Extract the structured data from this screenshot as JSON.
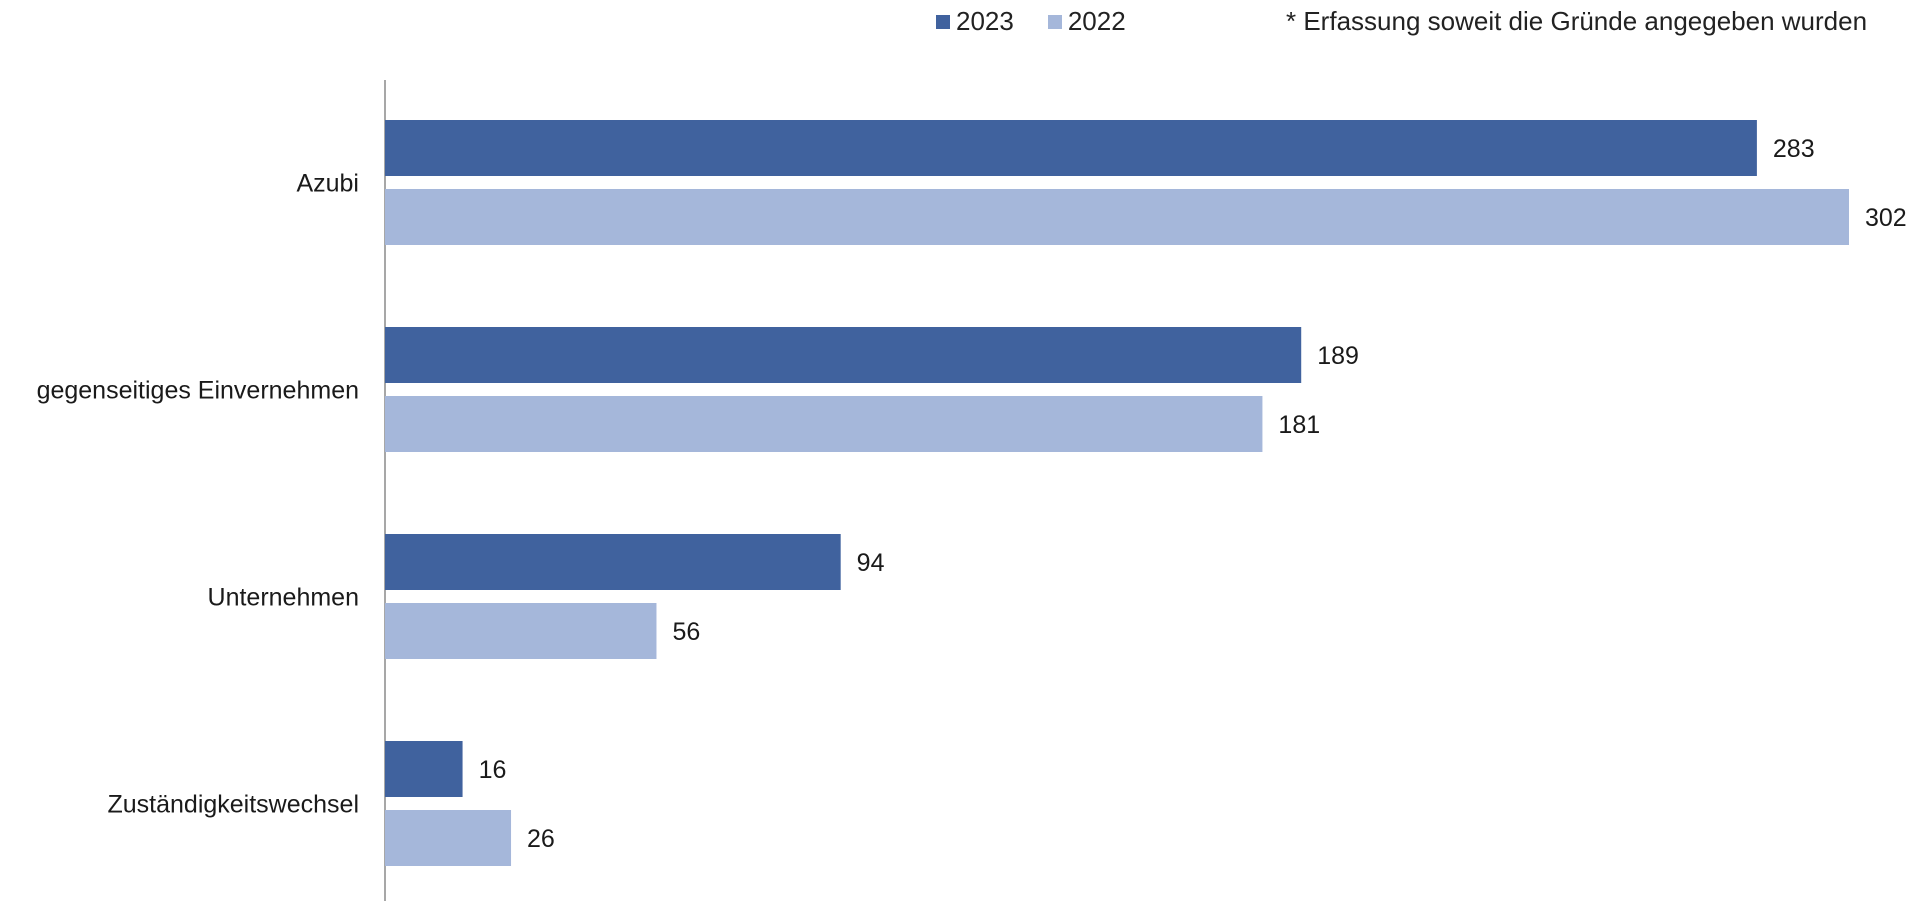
{
  "chart_data": {
    "type": "bar",
    "orientation": "horizontal",
    "categories": [
      "Azubi",
      "gegenseitiges Einvernehmen",
      "Unternehmen",
      "Zuständigkeitswechsel"
    ],
    "series": [
      {
        "name": "2023",
        "values": [
          283,
          189,
          94,
          16
        ],
        "color": "#40629e"
      },
      {
        "name": "2022",
        "values": [
          302,
          181,
          56,
          26
        ],
        "color": "#a5b7da"
      }
    ],
    "xlim": [
      0,
      302
    ],
    "grid": false,
    "legend_position": "top",
    "footnote": "* Erfassung soweit die Gründe angegeben wurden"
  }
}
